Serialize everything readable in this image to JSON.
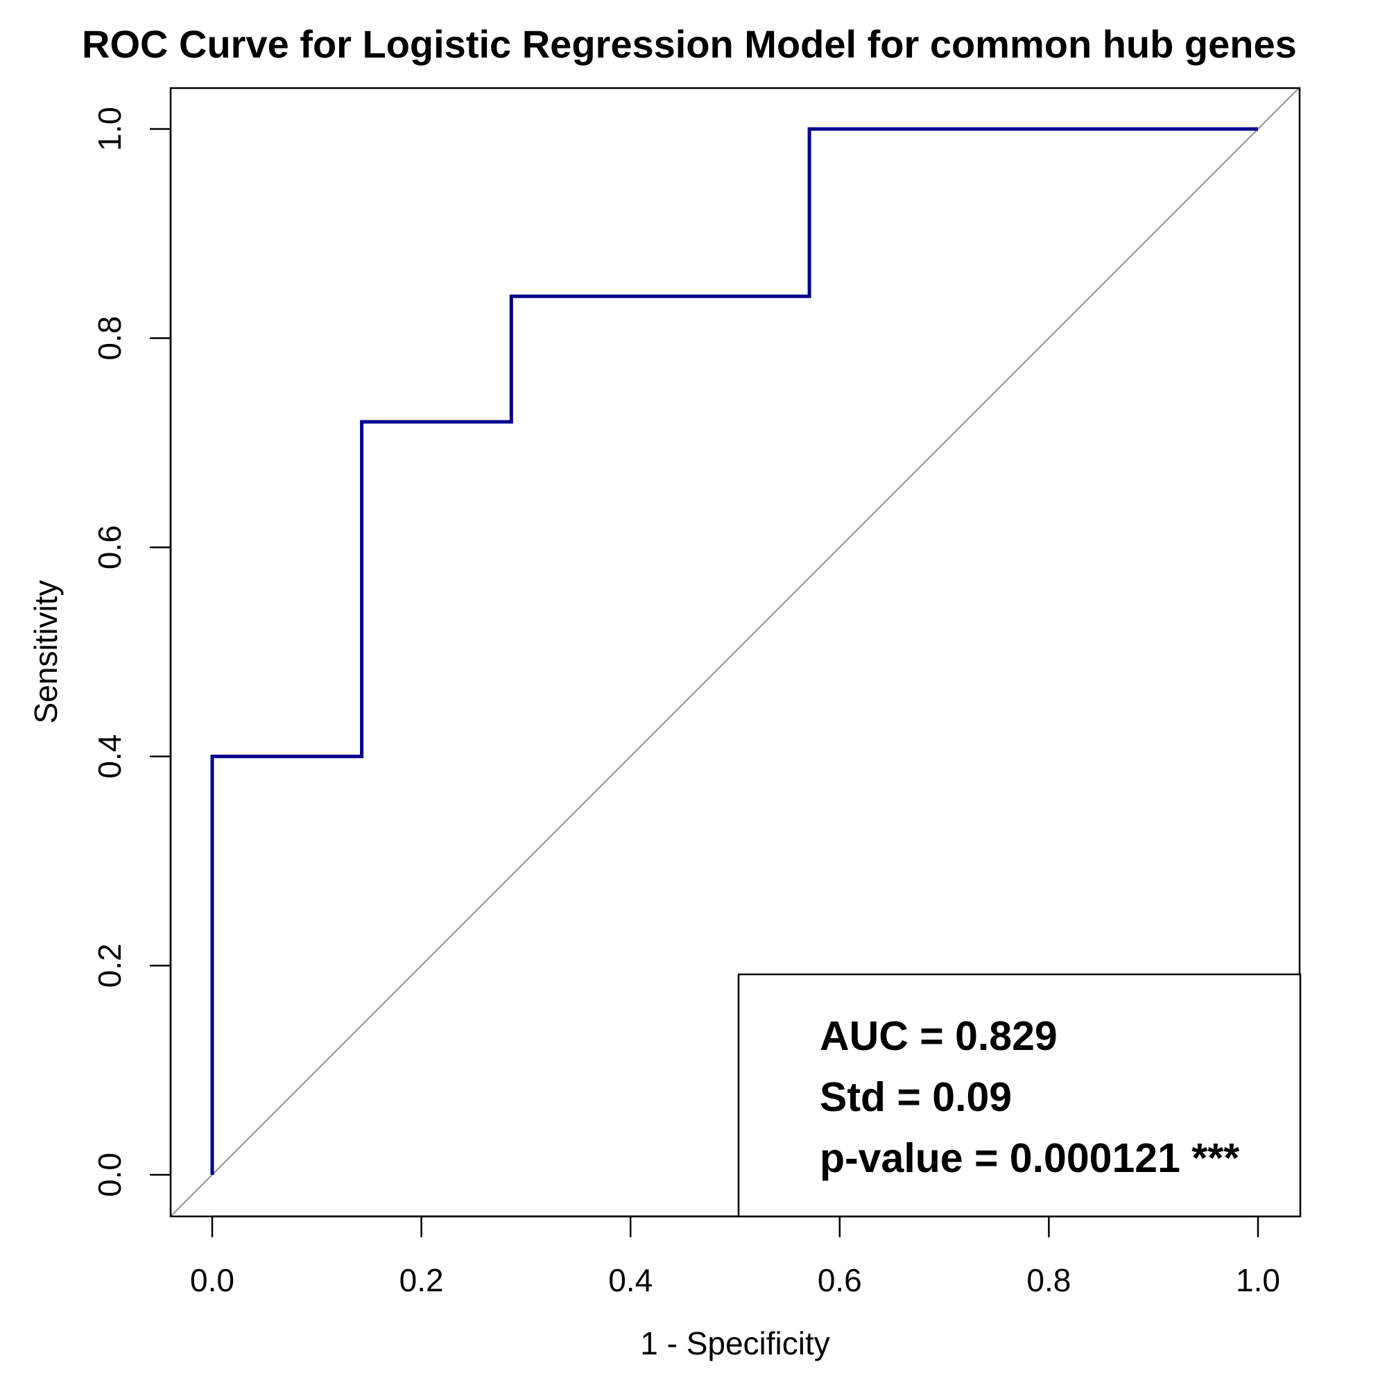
{
  "chart_data": {
    "type": "line",
    "title": "ROC Curve for Logistic Regression Model for common hub genes",
    "xlabel": "1 - Specificity",
    "ylabel": "Sensitivity",
    "xlim": [
      0,
      1
    ],
    "ylim": [
      0,
      1
    ],
    "x_ticks": [
      "0.0",
      "0.2",
      "0.4",
      "0.6",
      "0.8",
      "1.0"
    ],
    "y_ticks": [
      "0.0",
      "0.2",
      "0.4",
      "0.6",
      "0.8",
      "1.0"
    ],
    "grid": false,
    "series": [
      {
        "x": [
          0,
          0,
          0.143,
          0.143,
          0.286,
          0.286,
          0.571,
          0.571,
          1.0
        ],
        "y": [
          0,
          0.4,
          0.4,
          0.72,
          0.72,
          0.84,
          0.84,
          1.0,
          1.0
        ],
        "color": "#00008B"
      }
    ],
    "reference_line": {
      "x": [
        0,
        1
      ],
      "y": [
        0,
        1
      ],
      "color": "#A0A0A0"
    },
    "legend": {
      "position": "bottom-right",
      "lines": [
        "AUC = 0.829",
        "Std = 0.09",
        "p-value = 0.000121 ***"
      ]
    }
  }
}
